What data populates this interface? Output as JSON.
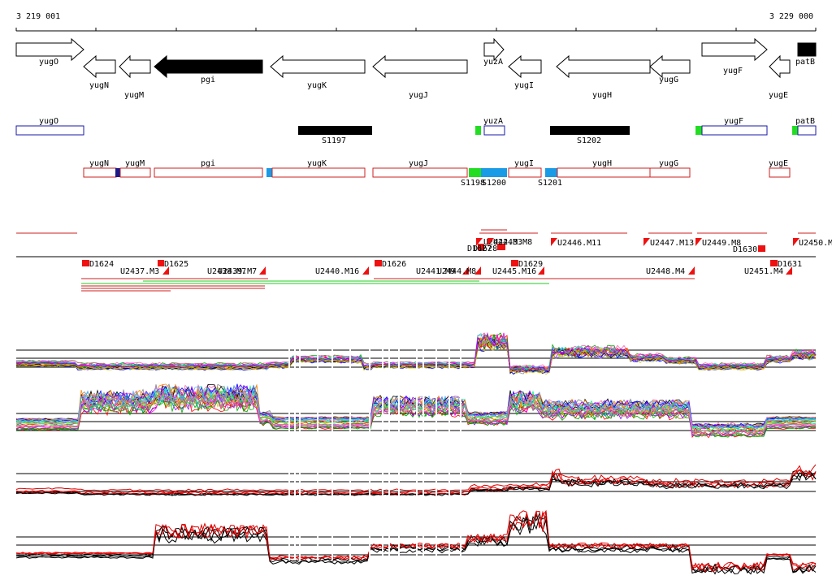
{
  "ruler": {
    "start_label": "3 219 001",
    "end_label": "3 229 000"
  },
  "genes_row1": [
    "yugO",
    "yugN",
    "yugM",
    "pgi",
    "yugK",
    "yugJ",
    "yuzA",
    "yugI",
    "yugH",
    "yugG",
    "yugF",
    "yugE",
    "patB"
  ],
  "features_row2": {
    "genes": [
      "yugO",
      "yuzA",
      "yugF",
      "patB"
    ],
    "segments": [
      "S1197",
      "S1202"
    ]
  },
  "features_row3": {
    "genes": [
      "yugN",
      "yugM",
      "pgi",
      "yugK",
      "yugJ",
      "yugI",
      "yugH",
      "yugG",
      "yugE"
    ],
    "segments": [
      "S1198",
      "S1200",
      "S1201"
    ]
  },
  "upper_markers": [
    "D1627",
    "D1628",
    "U2442.M3",
    "U2443.M8",
    "U2446.M11",
    "U2447.M13",
    "U2449.M8",
    "D1630",
    "U2450.M"
  ],
  "lower_markers": [
    "D1624",
    "U2437.M3",
    "D1625",
    "U2438.M7",
    "U2439.M7",
    "U2440.M16",
    "D1626",
    "U2441.M9",
    "U2444.M8",
    "U2445.M16",
    "D1629",
    "U2448.M4",
    "U2451.M4",
    "D1631"
  ],
  "colors": {
    "gene_outline": "#000000",
    "feature_blue": "#1a1aa8",
    "feature_red": "#cc2222",
    "segment_black": "#000000",
    "green_block": "#22dd22",
    "cyan_block": "#1a9be6",
    "marker_red": "#ee1111",
    "trace_black": "#000000",
    "trace_red": "#dd0000"
  }
}
